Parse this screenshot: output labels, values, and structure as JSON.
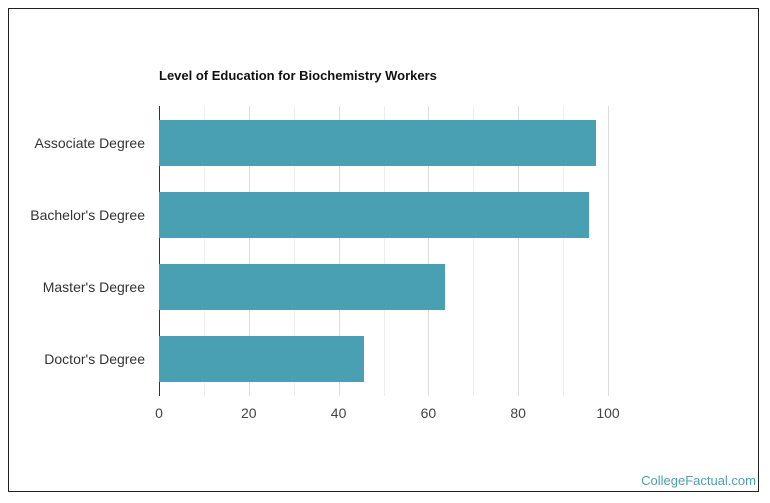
{
  "chart_data": {
    "type": "bar",
    "orientation": "horizontal",
    "title": "Level of Education for Biochemistry Workers",
    "categories": [
      "Associate Degree",
      "Bachelor's Degree",
      "Master's Degree",
      "Doctor's Degree"
    ],
    "values": [
      97.3,
      95.8,
      63.7,
      45.7
    ],
    "xlabel": "",
    "ylabel": "",
    "xlim": [
      0,
      100
    ],
    "xticks": [
      "0",
      "20",
      "40",
      "60",
      "80",
      "100"
    ],
    "grid": true,
    "bar_color": "#4aa0b3"
  },
  "credit": "CollegeFactual.com"
}
